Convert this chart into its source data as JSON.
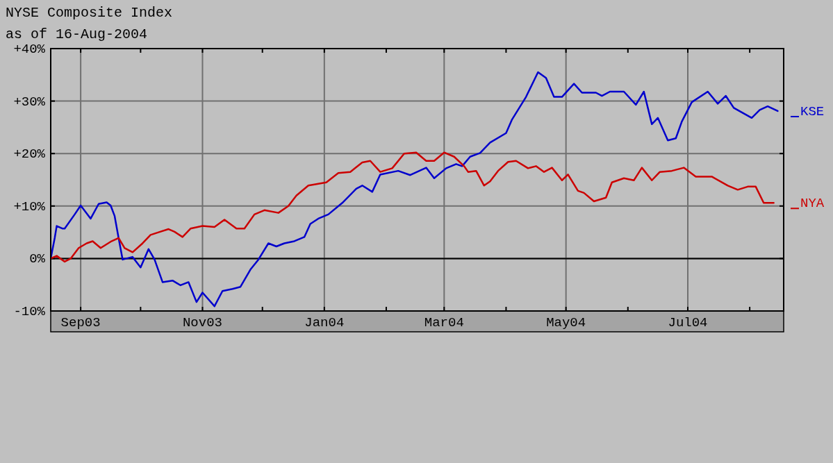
{
  "chart_data": {
    "type": "line",
    "title": "NYSE Composite Index",
    "subtitle": "as of 16-Aug-2004",
    "grid": true,
    "legend": "right",
    "line_style": "solid",
    "marker": "none",
    "xlim": [
      "2003-08-17",
      "2004-08-18"
    ],
    "xticks": [
      {
        "value": "2003-09-01",
        "label": "Sep03"
      },
      {
        "value": "2003-10-01",
        "label": null
      },
      {
        "value": "2003-11-01",
        "label": "Nov03"
      },
      {
        "value": "2003-12-01",
        "label": null
      },
      {
        "value": "2004-01-01",
        "label": "Jan04"
      },
      {
        "value": "2004-02-01",
        "label": null
      },
      {
        "value": "2004-03-01",
        "label": "Mar04"
      },
      {
        "value": "2004-04-01",
        "label": null
      },
      {
        "value": "2004-05-01",
        "label": "May04"
      },
      {
        "value": "2004-06-01",
        "label": null
      },
      {
        "value": "2004-07-01",
        "label": "Jul04"
      },
      {
        "value": "2004-08-01",
        "label": null
      }
    ],
    "ylim": [
      -10,
      40
    ],
    "yticks": [
      {
        "value": -10,
        "label": "-10%"
      },
      {
        "value": 0,
        "label": "0%"
      },
      {
        "value": 10,
        "label": "+10%"
      },
      {
        "value": 20,
        "label": "+20%"
      },
      {
        "value": 30,
        "label": "+30%"
      },
      {
        "value": 40,
        "label": "+40%"
      }
    ],
    "ref_lines": [
      {
        "axis": "y",
        "value": 0,
        "color": "#000000"
      }
    ],
    "series": [
      {
        "name": "KSE",
        "color": "#0000cc",
        "x": [
          "2003-08-17",
          "2003-08-19",
          "2003-08-20",
          "2003-08-23",
          "2003-08-24",
          "2003-08-29",
          "2003-09-01",
          "2003-09-06",
          "2003-09-10",
          "2003-09-14",
          "2003-09-16",
          "2003-09-18",
          "2003-09-20",
          "2003-09-22",
          "2003-09-27",
          "2003-10-01",
          "2003-10-05",
          "2003-10-08",
          "2003-10-12",
          "2003-10-17",
          "2003-10-21",
          "2003-10-25",
          "2003-10-29",
          "2003-11-01",
          "2003-11-07",
          "2003-11-11",
          "2003-11-16",
          "2003-11-20",
          "2003-11-25",
          "2003-11-29",
          "2003-12-04",
          "2003-12-08",
          "2003-12-12",
          "2003-12-17",
          "2003-12-22",
          "2003-12-25",
          "2003-12-29",
          "2004-01-03",
          "2004-01-10",
          "2004-01-17",
          "2004-01-20",
          "2004-01-25",
          "2004-01-29",
          "2004-02-07",
          "2004-02-13",
          "2004-02-21",
          "2004-02-25",
          "2004-03-02",
          "2004-03-07",
          "2004-03-10",
          "2004-03-14",
          "2004-03-19",
          "2004-03-24",
          "2004-04-01",
          "2004-04-04",
          "2004-04-11",
          "2004-04-17",
          "2004-04-21",
          "2004-04-25",
          "2004-04-29",
          "2004-05-05",
          "2004-05-09",
          "2004-05-16",
          "2004-05-19",
          "2004-05-23",
          "2004-05-30",
          "2004-06-05",
          "2004-06-09",
          "2004-06-13",
          "2004-06-16",
          "2004-06-21",
          "2004-06-25",
          "2004-06-28",
          "2004-07-03",
          "2004-07-11",
          "2004-07-16",
          "2004-07-20",
          "2004-07-24",
          "2004-08-02",
          "2004-08-06",
          "2004-08-10",
          "2004-08-15"
        ],
        "values": [
          0,
          3.9,
          6.2,
          5.7,
          5.7,
          8.4,
          10.1,
          7.6,
          10.4,
          10.7,
          10.1,
          8.1,
          3.9,
          -0.2,
          0.3,
          -1.7,
          1.8,
          -0.2,
          -4.5,
          -4.2,
          -5.1,
          -4.5,
          -8.3,
          -6.5,
          -9.1,
          -6.2,
          -5.8,
          -5.4,
          -2.1,
          -0.2,
          2.9,
          2.3,
          2.9,
          3.3,
          4.1,
          6.6,
          7.6,
          8.4,
          10.6,
          13.3,
          13.9,
          12.7,
          16.0,
          16.7,
          15.9,
          17.3,
          15.3,
          17.2,
          18.0,
          17.6,
          19.4,
          20.1,
          22.1,
          23.9,
          26.5,
          30.8,
          35.5,
          34.4,
          30.8,
          30.8,
          33.3,
          31.6,
          31.6,
          31.0,
          31.8,
          31.8,
          29.3,
          31.8,
          25.6,
          26.8,
          22.5,
          22.9,
          26.1,
          29.8,
          31.8,
          29.5,
          31.0,
          28.7,
          26.8,
          28.3,
          29.0,
          28.1
        ]
      },
      {
        "name": "NYA",
        "color": "#cc0000",
        "x": [
          "2003-08-17",
          "2003-08-20",
          "2003-08-24",
          "2003-08-27",
          "2003-08-31",
          "2003-09-04",
          "2003-09-07",
          "2003-09-11",
          "2003-09-16",
          "2003-09-20",
          "2003-09-23",
          "2003-09-27",
          "2003-10-02",
          "2003-10-06",
          "2003-10-10",
          "2003-10-15",
          "2003-10-18",
          "2003-10-22",
          "2003-10-26",
          "2003-11-01",
          "2003-11-07",
          "2003-11-12",
          "2003-11-18",
          "2003-11-22",
          "2003-11-27",
          "2003-12-02",
          "2003-12-09",
          "2003-12-14",
          "2003-12-18",
          "2003-12-24",
          "2004-01-02",
          "2004-01-08",
          "2004-01-14",
          "2004-01-20",
          "2004-01-24",
          "2004-01-29",
          "2004-02-04",
          "2004-02-10",
          "2004-02-16",
          "2004-02-21",
          "2004-02-25",
          "2004-03-01",
          "2004-03-06",
          "2004-03-11",
          "2004-03-13",
          "2004-03-17",
          "2004-03-21",
          "2004-03-24",
          "2004-03-28",
          "2004-04-02",
          "2004-04-06",
          "2004-04-12",
          "2004-04-16",
          "2004-04-20",
          "2004-04-24",
          "2004-04-29",
          "2004-05-02",
          "2004-05-07",
          "2004-05-10",
          "2004-05-15",
          "2004-05-21",
          "2004-05-24",
          "2004-05-30",
          "2004-06-04",
          "2004-06-08",
          "2004-06-13",
          "2004-06-17",
          "2004-06-23",
          "2004-06-29",
          "2004-07-05",
          "2004-07-13",
          "2004-07-21",
          "2004-07-26",
          "2004-07-31",
          "2004-08-04",
          "2004-08-08",
          "2004-08-13"
        ],
        "values": [
          0,
          0.5,
          -0.6,
          0,
          2.0,
          2.9,
          3.3,
          2.0,
          3.2,
          3.9,
          2.0,
          1.2,
          2.9,
          4.5,
          5.0,
          5.6,
          5.1,
          4.1,
          5.7,
          6.2,
          6.0,
          7.4,
          5.7,
          5.7,
          8.4,
          9.2,
          8.7,
          10.0,
          12.0,
          13.9,
          14.5,
          16.3,
          16.5,
          18.3,
          18.6,
          16.5,
          17.2,
          20.0,
          20.2,
          18.6,
          18.6,
          20.2,
          19.4,
          17.6,
          16.5,
          16.7,
          13.9,
          14.7,
          16.7,
          18.4,
          18.6,
          17.2,
          17.6,
          16.5,
          17.3,
          14.9,
          16.0,
          12.9,
          12.5,
          10.9,
          11.6,
          14.5,
          15.3,
          14.9,
          17.3,
          14.9,
          16.5,
          16.7,
          17.3,
          15.6,
          15.6,
          13.9,
          13.1,
          13.7,
          13.7,
          10.6,
          10.6
        ]
      }
    ]
  }
}
